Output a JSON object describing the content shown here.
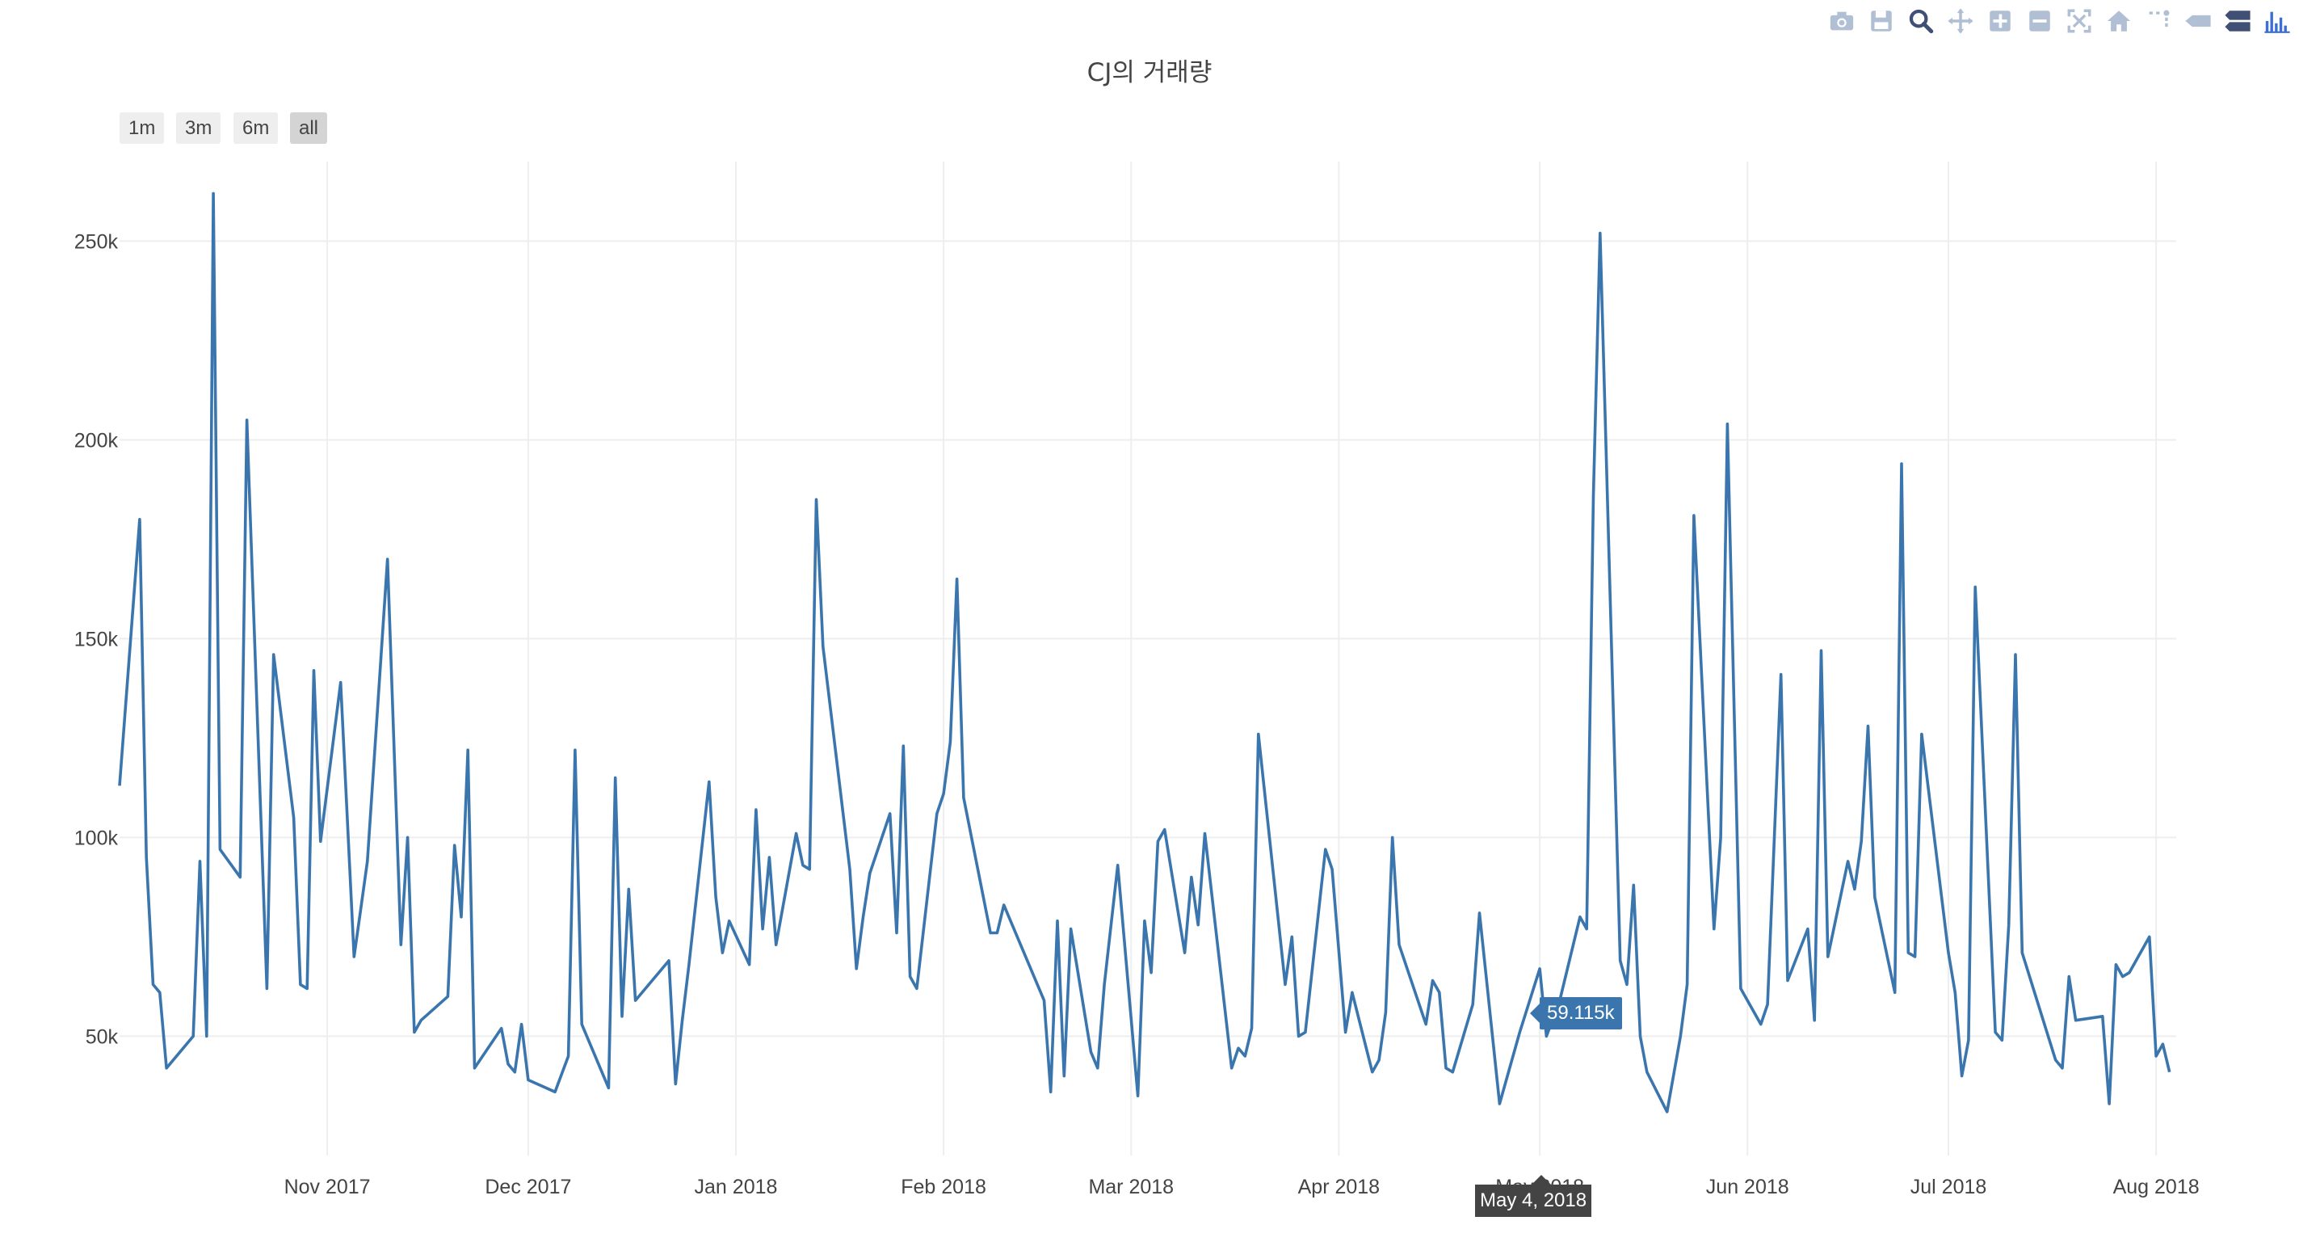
{
  "chart_data": {
    "type": "line",
    "title": "CJ의 거래량",
    "range_buttons": [
      "1m",
      "3m",
      "6m",
      "all"
    ],
    "active_range": "all",
    "xlabel": "",
    "ylabel": "",
    "x_ticks": [
      "Nov 2017",
      "Dec 2017",
      "Jan 2018",
      "Feb 2018",
      "Mar 2018",
      "Apr 2018",
      "May 2018",
      "Jun 2018",
      "Jul 2018",
      "Aug 2018"
    ],
    "y_ticks": [
      "50k",
      "100k",
      "150k",
      "200k",
      "250k"
    ],
    "xlim": [
      "2017-10-01",
      "2018-08-04"
    ],
    "ylim": [
      20000,
      270000
    ],
    "grid": true,
    "line_color": "#3a76ad",
    "hover": {
      "date": "May 4, 2018",
      "value": "59.115k"
    },
    "series": [
      {
        "points": [
          [
            "2017-10-01",
            113000
          ],
          [
            "2017-10-04",
            180000
          ],
          [
            "2017-10-05",
            95000
          ],
          [
            "2017-10-06",
            63000
          ],
          [
            "2017-10-07",
            61000
          ],
          [
            "2017-10-08",
            42000
          ],
          [
            "2017-10-12",
            50000
          ],
          [
            "2017-10-13",
            94000
          ],
          [
            "2017-10-14",
            50000
          ],
          [
            "2017-10-15",
            262000
          ],
          [
            "2017-10-16",
            97000
          ],
          [
            "2017-10-19",
            90000
          ],
          [
            "2017-10-20",
            205000
          ],
          [
            "2017-10-23",
            62000
          ],
          [
            "2017-10-24",
            146000
          ],
          [
            "2017-10-27",
            105000
          ],
          [
            "2017-10-28",
            63000
          ],
          [
            "2017-10-29",
            62000
          ],
          [
            "2017-10-30",
            142000
          ],
          [
            "2017-10-31",
            99000
          ],
          [
            "2017-11-03",
            139000
          ],
          [
            "2017-11-05",
            70000
          ],
          [
            "2017-11-06",
            82000
          ],
          [
            "2017-11-07",
            94000
          ],
          [
            "2017-11-10",
            170000
          ],
          [
            "2017-11-12",
            73000
          ],
          [
            "2017-11-13",
            100000
          ],
          [
            "2017-11-14",
            51000
          ],
          [
            "2017-11-15",
            54000
          ],
          [
            "2017-11-19",
            60000
          ],
          [
            "2017-11-20",
            98000
          ],
          [
            "2017-11-21",
            80000
          ],
          [
            "2017-11-22",
            122000
          ],
          [
            "2017-11-23",
            42000
          ],
          [
            "2017-11-27",
            52000
          ],
          [
            "2017-11-28",
            43000
          ],
          [
            "2017-11-29",
            41000
          ],
          [
            "2017-11-30",
            53000
          ],
          [
            "2017-12-01",
            39000
          ],
          [
            "2017-12-05",
            36000
          ],
          [
            "2017-12-07",
            45000
          ],
          [
            "2017-12-08",
            122000
          ],
          [
            "2017-12-09",
            53000
          ],
          [
            "2017-12-13",
            37000
          ],
          [
            "2017-12-14",
            115000
          ],
          [
            "2017-12-15",
            55000
          ],
          [
            "2017-12-16",
            87000
          ],
          [
            "2017-12-17",
            59000
          ],
          [
            "2017-12-22",
            69000
          ],
          [
            "2017-12-23",
            38000
          ],
          [
            "2017-12-24",
            54000
          ],
          [
            "2017-12-25",
            68000
          ],
          [
            "2017-12-28",
            114000
          ],
          [
            "2017-12-29",
            85000
          ],
          [
            "2017-12-30",
            71000
          ],
          [
            "2017-12-31",
            79000
          ],
          [
            "2018-01-03",
            68000
          ],
          [
            "2018-01-04",
            107000
          ],
          [
            "2018-01-05",
            77000
          ],
          [
            "2018-01-06",
            95000
          ],
          [
            "2018-01-07",
            73000
          ],
          [
            "2018-01-10",
            101000
          ],
          [
            "2018-01-11",
            93000
          ],
          [
            "2018-01-12",
            92000
          ],
          [
            "2018-01-13",
            185000
          ],
          [
            "2018-01-14",
            148000
          ],
          [
            "2018-01-18",
            92000
          ],
          [
            "2018-01-19",
            67000
          ],
          [
            "2018-01-20",
            80000
          ],
          [
            "2018-01-21",
            91000
          ],
          [
            "2018-01-24",
            106000
          ],
          [
            "2018-01-25",
            76000
          ],
          [
            "2018-01-26",
            123000
          ],
          [
            "2018-01-27",
            65000
          ],
          [
            "2018-01-28",
            62000
          ],
          [
            "2018-01-31",
            106000
          ],
          [
            "2018-02-01",
            111000
          ],
          [
            "2018-02-02",
            124000
          ],
          [
            "2018-02-03",
            165000
          ],
          [
            "2018-02-04",
            110000
          ],
          [
            "2018-02-08",
            76000
          ],
          [
            "2018-02-09",
            76000
          ],
          [
            "2018-02-10",
            83000
          ],
          [
            "2018-02-16",
            59000
          ],
          [
            "2018-02-17",
            36000
          ],
          [
            "2018-02-18",
            79000
          ],
          [
            "2018-02-19",
            40000
          ],
          [
            "2018-02-20",
            77000
          ],
          [
            "2018-02-23",
            46000
          ],
          [
            "2018-02-24",
            42000
          ],
          [
            "2018-02-25",
            63000
          ],
          [
            "2018-02-27",
            93000
          ],
          [
            "2018-03-02",
            35000
          ],
          [
            "2018-03-03",
            79000
          ],
          [
            "2018-03-04",
            66000
          ],
          [
            "2018-03-05",
            99000
          ],
          [
            "2018-03-06",
            102000
          ],
          [
            "2018-03-09",
            71000
          ],
          [
            "2018-03-10",
            90000
          ],
          [
            "2018-03-11",
            78000
          ],
          [
            "2018-03-12",
            101000
          ],
          [
            "2018-03-16",
            42000
          ],
          [
            "2018-03-17",
            47000
          ],
          [
            "2018-03-18",
            45000
          ],
          [
            "2018-03-19",
            52000
          ],
          [
            "2018-03-20",
            126000
          ],
          [
            "2018-03-24",
            63000
          ],
          [
            "2018-03-25",
            75000
          ],
          [
            "2018-03-26",
            50000
          ],
          [
            "2018-03-27",
            51000
          ],
          [
            "2018-03-30",
            97000
          ],
          [
            "2018-03-31",
            92000
          ],
          [
            "2018-04-02",
            51000
          ],
          [
            "2018-04-03",
            61000
          ],
          [
            "2018-04-06",
            41000
          ],
          [
            "2018-04-07",
            44000
          ],
          [
            "2018-04-08",
            56000
          ],
          [
            "2018-04-09",
            100000
          ],
          [
            "2018-04-10",
            73000
          ],
          [
            "2018-04-14",
            53000
          ],
          [
            "2018-04-15",
            64000
          ],
          [
            "2018-04-16",
            61000
          ],
          [
            "2018-04-17",
            42000
          ],
          [
            "2018-04-18",
            41000
          ],
          [
            "2018-04-21",
            58000
          ],
          [
            "2018-04-22",
            81000
          ],
          [
            "2018-04-25",
            33000
          ],
          [
            "2018-04-28",
            51000
          ],
          [
            "2018-05-01",
            67000
          ],
          [
            "2018-05-02",
            50000
          ],
          [
            "2018-05-04",
            59115
          ],
          [
            "2018-05-07",
            80000
          ],
          [
            "2018-05-08",
            77000
          ],
          [
            "2018-05-09",
            186000
          ],
          [
            "2018-05-10",
            252000
          ],
          [
            "2018-05-13",
            69000
          ],
          [
            "2018-05-14",
            63000
          ],
          [
            "2018-05-15",
            88000
          ],
          [
            "2018-05-16",
            50000
          ],
          [
            "2018-05-17",
            41000
          ],
          [
            "2018-05-20",
            31000
          ],
          [
            "2018-05-22",
            50000
          ],
          [
            "2018-05-23",
            63000
          ],
          [
            "2018-05-24",
            181000
          ],
          [
            "2018-05-27",
            77000
          ],
          [
            "2018-05-28",
            100000
          ],
          [
            "2018-05-29",
            204000
          ],
          [
            "2018-05-31",
            62000
          ],
          [
            "2018-06-03",
            53000
          ],
          [
            "2018-06-04",
            58000
          ],
          [
            "2018-06-06",
            141000
          ],
          [
            "2018-06-07",
            64000
          ],
          [
            "2018-06-10",
            77000
          ],
          [
            "2018-06-11",
            54000
          ],
          [
            "2018-06-12",
            147000
          ],
          [
            "2018-06-13",
            70000
          ],
          [
            "2018-06-16",
            94000
          ],
          [
            "2018-06-17",
            87000
          ],
          [
            "2018-06-18",
            99000
          ],
          [
            "2018-06-19",
            128000
          ],
          [
            "2018-06-20",
            85000
          ],
          [
            "2018-06-23",
            61000
          ],
          [
            "2018-06-24",
            194000
          ],
          [
            "2018-06-25",
            71000
          ],
          [
            "2018-06-26",
            70000
          ],
          [
            "2018-06-27",
            126000
          ],
          [
            "2018-07-01",
            71000
          ],
          [
            "2018-07-02",
            61000
          ],
          [
            "2018-07-03",
            40000
          ],
          [
            "2018-07-04",
            49000
          ],
          [
            "2018-07-05",
            163000
          ],
          [
            "2018-07-08",
            51000
          ],
          [
            "2018-07-09",
            49000
          ],
          [
            "2018-07-10",
            78000
          ],
          [
            "2018-07-11",
            146000
          ],
          [
            "2018-07-12",
            71000
          ],
          [
            "2018-07-17",
            44000
          ],
          [
            "2018-07-18",
            42000
          ],
          [
            "2018-07-19",
            65000
          ],
          [
            "2018-07-20",
            54000
          ],
          [
            "2018-07-24",
            55000
          ],
          [
            "2018-07-25",
            33000
          ],
          [
            "2018-07-26",
            68000
          ],
          [
            "2018-07-27",
            65000
          ],
          [
            "2018-07-28",
            66000
          ],
          [
            "2018-07-31",
            75000
          ],
          [
            "2018-08-01",
            45000
          ],
          [
            "2018-08-02",
            48000
          ],
          [
            "2018-08-03",
            41000
          ]
        ]
      }
    ]
  },
  "modebar": {
    "icons": [
      "camera-icon",
      "save-icon",
      "zoom-icon",
      "pan-icon",
      "zoom-in-icon",
      "zoom-out-icon",
      "autoscale-icon",
      "home-icon",
      "spike-lines-icon",
      "hover-closest-icon",
      "hover-compare-icon",
      "plotly-logo-icon"
    ],
    "color": "#b0bfd4",
    "logo_color": "#3f4f75"
  }
}
